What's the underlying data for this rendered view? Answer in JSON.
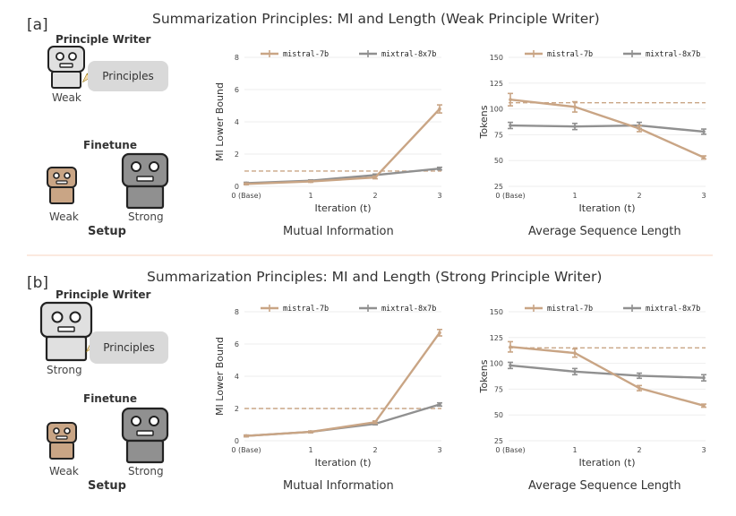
{
  "panels": [
    {
      "tag": "[a]",
      "title": "Summarization Principles: MI and Length (Weak Principle Writer)",
      "setup": {
        "writer_label": "Principle Writer",
        "writer_strength": "Weak",
        "principles_label": "Principles",
        "finetune_label": "Finetune",
        "weak_label": "Weak",
        "strong_label": "Strong",
        "caption": "Setup"
      },
      "mi_caption": "Mutual Information",
      "len_caption": "Average Sequence Length"
    },
    {
      "tag": "[b]",
      "title": "Summarization Principles: MI and Length (Strong Principle Writer)",
      "setup": {
        "writer_label": "Principle Writer",
        "writer_strength": "Strong",
        "principles_label": "Principles",
        "finetune_label": "Finetune",
        "weak_label": "Weak",
        "strong_label": "Strong",
        "caption": "Setup"
      },
      "mi_caption": "Mutual Information",
      "len_caption": "Average Sequence Length"
    }
  ],
  "colors": {
    "mistral": "#c9a585",
    "mixtral": "#909090",
    "robot_weak": "#c9a585",
    "robot_strong": "#909090",
    "robot_light": "#e0e0e0",
    "pencil": "#f2b705"
  },
  "icons": [
    "robot-icon",
    "pencil-icon"
  ],
  "chart_data": [
    {
      "id": "a-mi",
      "type": "line",
      "title": "",
      "xlabel": "Iteration (t)",
      "ylabel": "MI Lower Bound",
      "categories": [
        "0 (Base)",
        "1",
        "2",
        "3"
      ],
      "ylim": [
        0,
        8
      ],
      "yticks": [
        0,
        2,
        4,
        6,
        8
      ],
      "series": [
        {
          "name": "mistral-7b",
          "values": [
            0.15,
            0.3,
            0.55,
            4.8
          ],
          "errors": [
            0.05,
            0.05,
            0.08,
            0.25
          ]
        },
        {
          "name": "mixtral-8x7b",
          "values": [
            0.2,
            0.35,
            0.7,
            1.1
          ],
          "errors": [
            0.05,
            0.05,
            0.06,
            0.08
          ]
        }
      ],
      "reference_line": 0.95
    },
    {
      "id": "a-len",
      "type": "line",
      "title": "",
      "xlabel": "Iteration (t)",
      "ylabel": "Tokens",
      "categories": [
        "0 (Base)",
        "1",
        "2",
        "3"
      ],
      "ylim": [
        25,
        150
      ],
      "yticks": [
        25,
        50,
        75,
        100,
        125,
        150
      ],
      "series": [
        {
          "name": "mistral-7b",
          "values": [
            109,
            102,
            81,
            53
          ],
          "errors": [
            6,
            5,
            3,
            1.5
          ]
        },
        {
          "name": "mixtral-8x7b",
          "values": [
            84,
            83,
            84,
            78
          ],
          "errors": [
            3,
            3,
            3,
            2.5
          ]
        }
      ],
      "reference_line": 106
    },
    {
      "id": "b-mi",
      "type": "line",
      "title": "",
      "xlabel": "Iteration (t)",
      "ylabel": "MI Lower Bound",
      "categories": [
        "0 (Base)",
        "1",
        "2",
        "3"
      ],
      "ylim": [
        0,
        8
      ],
      "yticks": [
        0,
        2,
        4,
        6,
        8
      ],
      "series": [
        {
          "name": "mistral-7b",
          "values": [
            0.3,
            0.55,
            1.15,
            6.7
          ],
          "errors": [
            0.05,
            0.05,
            0.08,
            0.2
          ]
        },
        {
          "name": "mixtral-8x7b",
          "values": [
            0.3,
            0.55,
            1.05,
            2.25
          ],
          "errors": [
            0.05,
            0.05,
            0.06,
            0.1
          ]
        }
      ],
      "reference_line": 2.0
    },
    {
      "id": "b-len",
      "type": "line",
      "title": "",
      "xlabel": "Iteration (t)",
      "ylabel": "Tokens",
      "categories": [
        "0 (Base)",
        "1",
        "2",
        "3"
      ],
      "ylim": [
        25,
        150
      ],
      "yticks": [
        25,
        50,
        75,
        100,
        125,
        150
      ],
      "series": [
        {
          "name": "mistral-7b",
          "values": [
            116,
            110,
            76,
            59
          ],
          "errors": [
            5,
            4,
            2.5,
            1.5
          ]
        },
        {
          "name": "mixtral-8x7b",
          "values": [
            98,
            92,
            88,
            86
          ],
          "errors": [
            3,
            3,
            2.5,
            3
          ]
        }
      ],
      "reference_line": 115
    }
  ]
}
